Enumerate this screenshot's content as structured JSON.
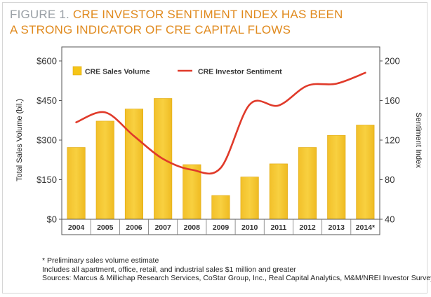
{
  "title": {
    "prefix": "FIGURE 1.",
    "line1": "CRE INVESTOR SENTIMENT INDEX HAS BEEN",
    "line2": "A STRONG INDICATOR OF CRE CAPITAL FLOWS"
  },
  "chart_data": {
    "type": "bar",
    "categories": [
      "2004",
      "2005",
      "2006",
      "2007",
      "2008",
      "2009",
      "2010",
      "2011",
      "2012",
      "2013",
      "2014*"
    ],
    "series": [
      {
        "name": "CRE Sales Volume",
        "type": "bar",
        "axis": "left",
        "color": "#f5c518",
        "values": [
          272,
          372,
          418,
          458,
          207,
          90,
          160,
          210,
          272,
          318,
          357
        ]
      },
      {
        "name": "CRE Investor Sentiment",
        "type": "line",
        "axis": "right",
        "color": "#e03a2a",
        "values": [
          138,
          148,
          124,
          101,
          90,
          92,
          156,
          155,
          175,
          177,
          188
        ]
      }
    ],
    "ylabel": "Total Sales Volume (bil.)",
    "y2label": "Sentiment Index",
    "ylim": [
      0,
      600
    ],
    "yticks": [
      "$0",
      "$150",
      "$300",
      "$450",
      "$600"
    ],
    "y2lim": [
      40,
      200
    ],
    "y2ticks": [
      "40",
      "80",
      "120",
      "160",
      "200"
    ],
    "legend_position": "top"
  },
  "notes": [
    "* Preliminary sales volume estimate",
    "Includes all apartment, office, retail, and industrial sales $1 million and greater",
    "Sources: Marcus & Millichap Research Services, CoStar Group, Inc., Real Capital Analytics, M&M/NREI Investor Survey"
  ]
}
